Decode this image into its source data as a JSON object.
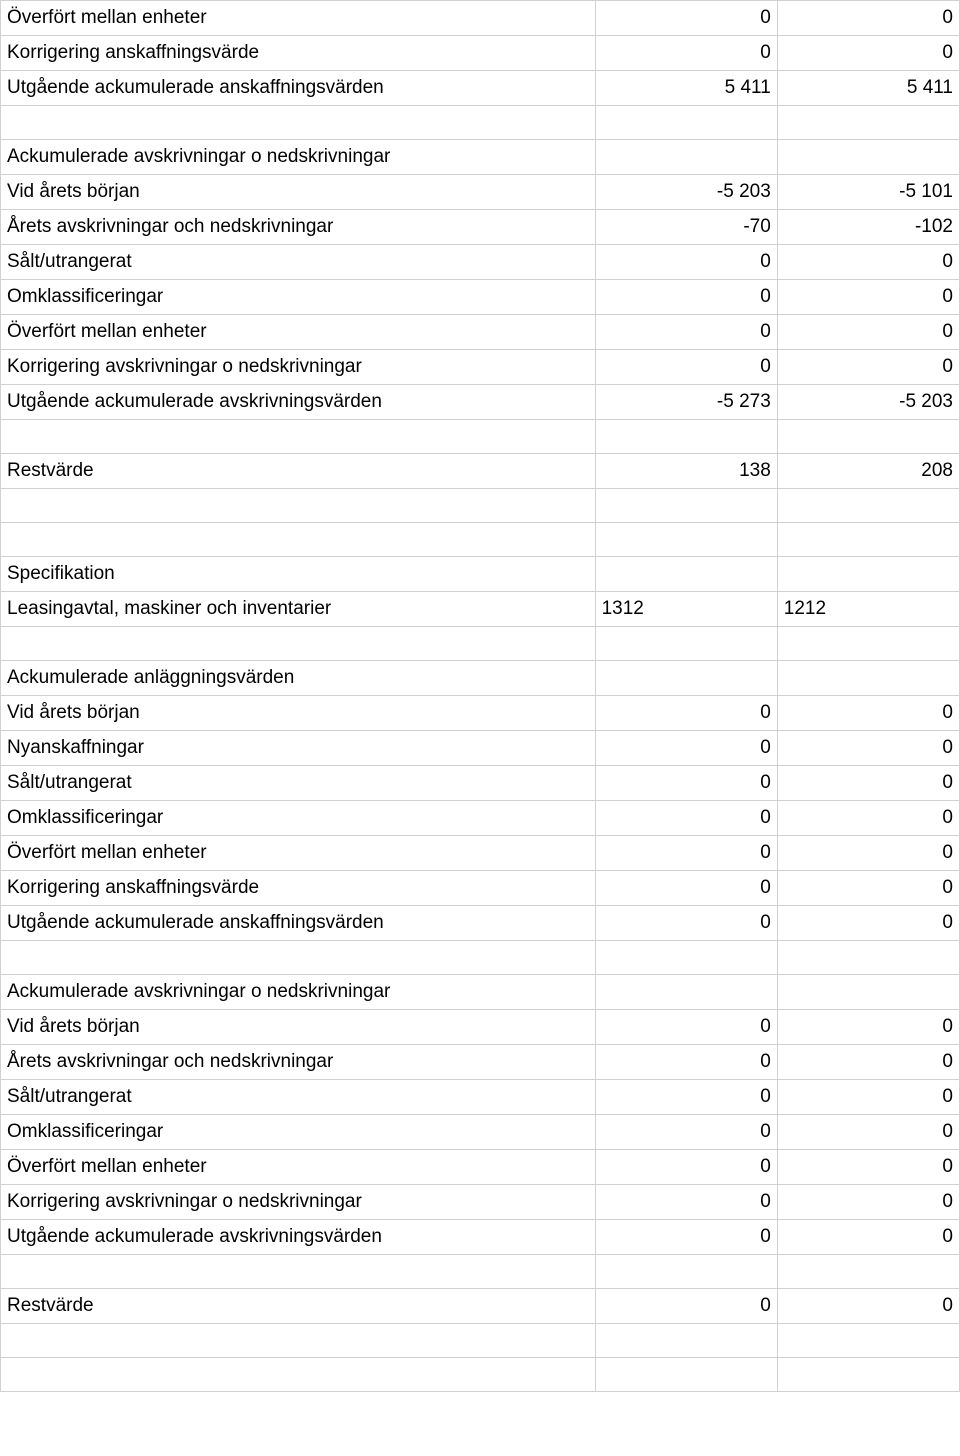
{
  "rows": [
    {
      "label": "Överfört mellan enheter",
      "c1": "0",
      "c2": "0",
      "c1align": "right",
      "c2align": "right"
    },
    {
      "label": "Korrigering anskaffningsvärde",
      "c1": "0",
      "c2": "0",
      "c1align": "right",
      "c2align": "right"
    },
    {
      "label": "Utgående ackumulerade anskaffningsvärden",
      "c1": "5 411",
      "c2": "5 411",
      "c1align": "right",
      "c2align": "right"
    },
    {
      "spacer": true
    },
    {
      "label": "Ackumulerade avskrivningar o nedskrivningar",
      "c1": "",
      "c2": "",
      "c1align": "right",
      "c2align": "right"
    },
    {
      "label": "Vid årets början",
      "c1": "-5 203",
      "c2": "-5 101",
      "c1align": "right",
      "c2align": "right"
    },
    {
      "label": "Årets avskrivningar och nedskrivningar",
      "c1": "-70",
      "c2": "-102",
      "c1align": "right",
      "c2align": "right"
    },
    {
      "label": "Sålt/utrangerat",
      "c1": "0",
      "c2": "0",
      "c1align": "right",
      "c2align": "right"
    },
    {
      "label": "Omklassificeringar",
      "c1": "0",
      "c2": "0",
      "c1align": "right",
      "c2align": "right"
    },
    {
      "label": "Överfört mellan enheter",
      "c1": "0",
      "c2": "0",
      "c1align": "right",
      "c2align": "right"
    },
    {
      "label": "Korrigering avskrivningar o nedskrivningar",
      "c1": "0",
      "c2": "0",
      "c1align": "right",
      "c2align": "right"
    },
    {
      "label": "Utgående ackumulerade avskrivningsvärden",
      "c1": "-5 273",
      "c2": "-5 203",
      "c1align": "right",
      "c2align": "right"
    },
    {
      "spacer": true
    },
    {
      "label": "Restvärde",
      "c1": "138",
      "c2": "208",
      "c1align": "right",
      "c2align": "right"
    },
    {
      "spacer": true
    },
    {
      "spacer": true
    },
    {
      "label": "Specifikation",
      "c1": "",
      "c2": "",
      "c1align": "right",
      "c2align": "right"
    },
    {
      "label": "Leasingavtal, maskiner och inventarier",
      "c1": "1312",
      "c2": "1212",
      "c1align": "left",
      "c2align": "left"
    },
    {
      "spacer": true
    },
    {
      "label": "Ackumulerade anläggningsvärden",
      "c1": "",
      "c2": "",
      "c1align": "right",
      "c2align": "right"
    },
    {
      "label": "Vid årets början",
      "c1": "0",
      "c2": "0",
      "c1align": "right",
      "c2align": "right"
    },
    {
      "label": "Nyanskaffningar",
      "c1": "0",
      "c2": "0",
      "c1align": "right",
      "c2align": "right"
    },
    {
      "label": "Sålt/utrangerat",
      "c1": "0",
      "c2": "0",
      "c1align": "right",
      "c2align": "right"
    },
    {
      "label": "Omklassificeringar",
      "c1": "0",
      "c2": "0",
      "c1align": "right",
      "c2align": "right"
    },
    {
      "label": "Överfört mellan enheter",
      "c1": "0",
      "c2": "0",
      "c1align": "right",
      "c2align": "right"
    },
    {
      "label": "Korrigering anskaffningsvärde",
      "c1": "0",
      "c2": "0",
      "c1align": "right",
      "c2align": "right"
    },
    {
      "label": "Utgående ackumulerade anskaffningsvärden",
      "c1": "0",
      "c2": "0",
      "c1align": "right",
      "c2align": "right"
    },
    {
      "spacer": true
    },
    {
      "label": "Ackumulerade avskrivningar o nedskrivningar",
      "c1": "",
      "c2": "",
      "c1align": "right",
      "c2align": "right"
    },
    {
      "label": "Vid årets början",
      "c1": "0",
      "c2": "0",
      "c1align": "right",
      "c2align": "right"
    },
    {
      "label": "Årets avskrivningar och nedskrivningar",
      "c1": "0",
      "c2": "0",
      "c1align": "right",
      "c2align": "right"
    },
    {
      "label": "Sålt/utrangerat",
      "c1": "0",
      "c2": "0",
      "c1align": "right",
      "c2align": "right"
    },
    {
      "label": "Omklassificeringar",
      "c1": "0",
      "c2": "0",
      "c1align": "right",
      "c2align": "right"
    },
    {
      "label": "Överfört mellan enheter",
      "c1": "0",
      "c2": "0",
      "c1align": "right",
      "c2align": "right"
    },
    {
      "label": "Korrigering avskrivningar o nedskrivningar",
      "c1": "0",
      "c2": "0",
      "c1align": "right",
      "c2align": "right"
    },
    {
      "label": "Utgående ackumulerade avskrivningsvärden",
      "c1": "0",
      "c2": "0",
      "c1align": "right",
      "c2align": "right"
    },
    {
      "spacer": true
    },
    {
      "label": "Restvärde",
      "c1": "0",
      "c2": "0",
      "c1align": "right",
      "c2align": "right"
    },
    {
      "spacer": true
    },
    {
      "spacer": true
    }
  ]
}
